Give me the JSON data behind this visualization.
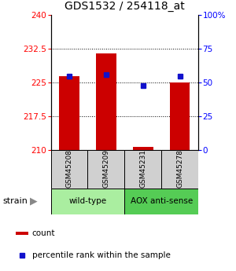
{
  "title": "GDS1532 / 254118_at",
  "samples": [
    "GSM45208",
    "GSM45209",
    "GSM45231",
    "GSM45278"
  ],
  "count_values": [
    226.5,
    231.5,
    210.7,
    225.0
  ],
  "percentile_values": [
    55,
    56,
    48,
    55
  ],
  "y_min": 210,
  "y_max": 240,
  "y_ticks": [
    210,
    217.5,
    225,
    232.5,
    240
  ],
  "y_tick_labels": [
    "210",
    "217.5",
    "225",
    "232.5",
    "240"
  ],
  "right_y_ticks": [
    0,
    25,
    50,
    75,
    100
  ],
  "right_y_tick_labels": [
    "0",
    "25",
    "50",
    "75",
    "100%"
  ],
  "bar_color": "#cc0000",
  "percentile_color": "#1111cc",
  "wt_color": "#aaeea0",
  "aox_color": "#55cc55",
  "sample_box_color": "#d0d0d0",
  "baseline": 210,
  "bar_width": 0.55,
  "group_label": "strain"
}
